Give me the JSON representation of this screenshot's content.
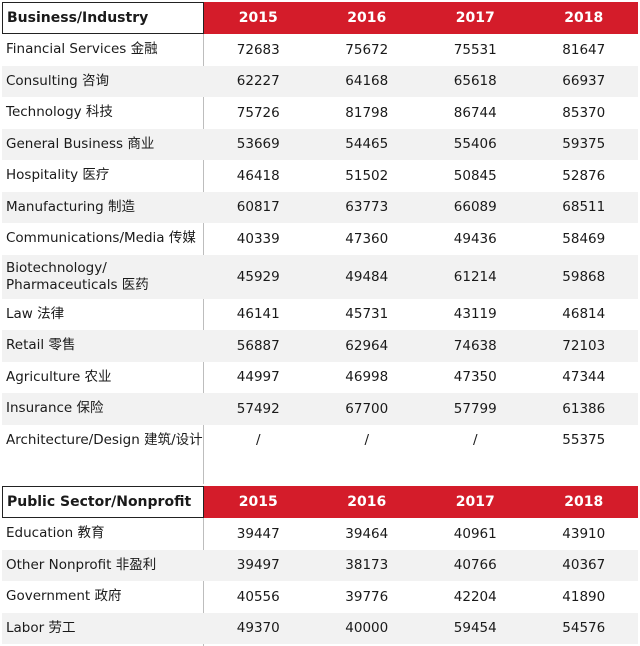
{
  "business": {
    "header": "Business/Industry",
    "years": [
      "2015",
      "2016",
      "2017",
      "2018"
    ],
    "rows": [
      {
        "label": "Financial Services 金融",
        "values": [
          "72683",
          "75672",
          "75531",
          "81647"
        ]
      },
      {
        "label": "Consulting 咨询",
        "values": [
          "62227",
          "64168",
          "65618",
          "66937"
        ]
      },
      {
        "label": "Technology 科技",
        "values": [
          "75726",
          "81798",
          "86744",
          "85370"
        ]
      },
      {
        "label": "General Business 商业",
        "values": [
          "53669",
          "54465",
          "55406",
          "59375"
        ]
      },
      {
        "label": "Hospitality 医疗",
        "values": [
          "46418",
          "51502",
          "50845",
          "52876"
        ]
      },
      {
        "label": "Manufacturing 制造",
        "values": [
          "60817",
          "63773",
          "66089",
          "68511"
        ]
      },
      {
        "label": "Communications/Media 传媒",
        "values": [
          "40339",
          "47360",
          "49436",
          "58469"
        ]
      },
      {
        "label": "Biotechnology/ Pharmaceuticals 医药",
        "values": [
          "45929",
          "49484",
          "61214",
          "59868"
        ]
      },
      {
        "label": "Law 法律",
        "values": [
          "46141",
          "45731",
          "43119",
          "46814"
        ]
      },
      {
        "label": "Retail 零售",
        "values": [
          "56887",
          "62964",
          "74638",
          "72103"
        ]
      },
      {
        "label": "Agriculture 农业",
        "values": [
          "44997",
          "46998",
          "47350",
          "47344"
        ]
      },
      {
        "label": "Insurance 保险",
        "values": [
          "57492",
          "67700",
          "57799",
          "61386"
        ]
      },
      {
        "label": "Architecture/Design 建筑/设计",
        "values": [
          "/",
          "/",
          "/",
          "55375"
        ]
      }
    ]
  },
  "public": {
    "header": "Public Sector/Nonprofit",
    "years": [
      "2015",
      "2016",
      "2017",
      "2018"
    ],
    "rows": [
      {
        "label": "Education 教育",
        "values": [
          "39447",
          "39464",
          "40961",
          "43910"
        ]
      },
      {
        "label": "Other Nonprofit 非盈利",
        "values": [
          "39497",
          "38173",
          "40766",
          "40367"
        ]
      },
      {
        "label": "Government 政府",
        "values": [
          "40556",
          "39776",
          "42204",
          "41890"
        ]
      },
      {
        "label": "Labor 劳工",
        "values": [
          "49370",
          "40000",
          "59454",
          "54576"
        ]
      }
    ]
  },
  "colors": {
    "header_red": "#d41c2a",
    "zebra": "#f2f2f2"
  }
}
